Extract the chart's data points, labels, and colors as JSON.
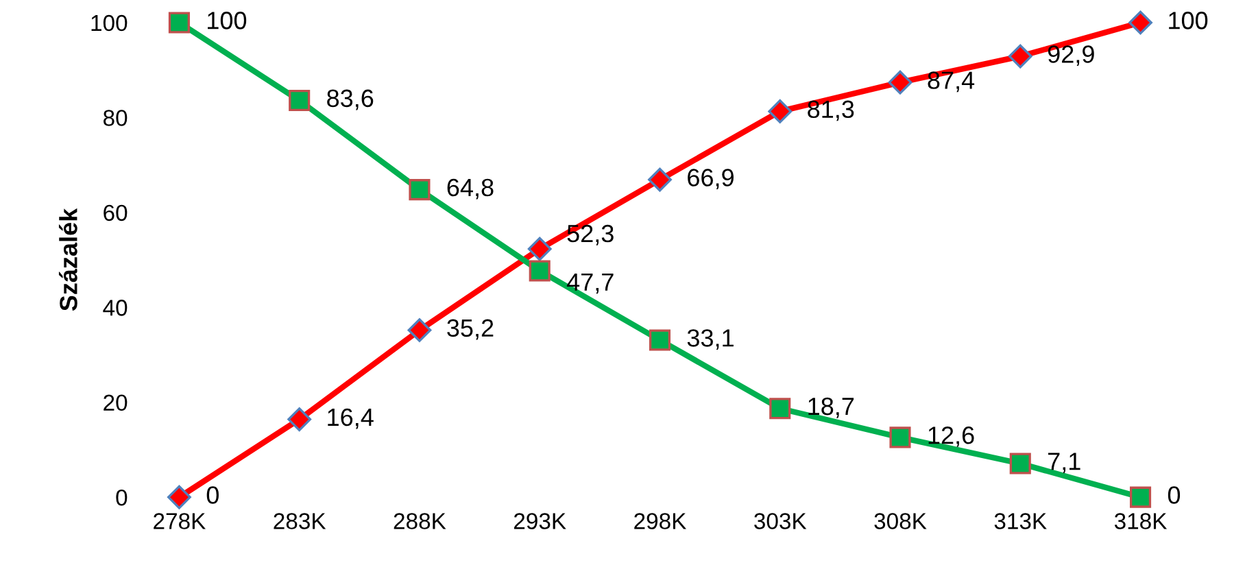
{
  "chart_data": {
    "type": "line",
    "ylabel": "Százalék",
    "categories": [
      "278K",
      "283K",
      "288K",
      "293K",
      "298K",
      "303K",
      "308K",
      "313K",
      "318K"
    ],
    "series": [
      {
        "color": "#ff0000",
        "marker": "diamond",
        "values": [
          0,
          16.4,
          35.2,
          52.3,
          66.9,
          81.3,
          87.4,
          92.9,
          100
        ],
        "value_labels": [
          "0",
          "16,4",
          "35,2",
          "52,3",
          "66,9",
          "81,3",
          "87,4",
          "92,9",
          "100"
        ]
      },
      {
        "color": "#00b050",
        "marker": "square",
        "values": [
          100,
          83.6,
          64.8,
          47.7,
          33.1,
          18.7,
          12.6,
          7.1,
          0
        ],
        "value_labels": [
          "100",
          "83,6",
          "64,8",
          "47,7",
          "33,1",
          "18,7",
          "12,6",
          "7,1",
          "0"
        ]
      }
    ],
    "ylim": [
      0,
      100
    ],
    "yticks": [
      0,
      20,
      40,
      60,
      80,
      100
    ],
    "grid": false,
    "line_style": "solid"
  }
}
